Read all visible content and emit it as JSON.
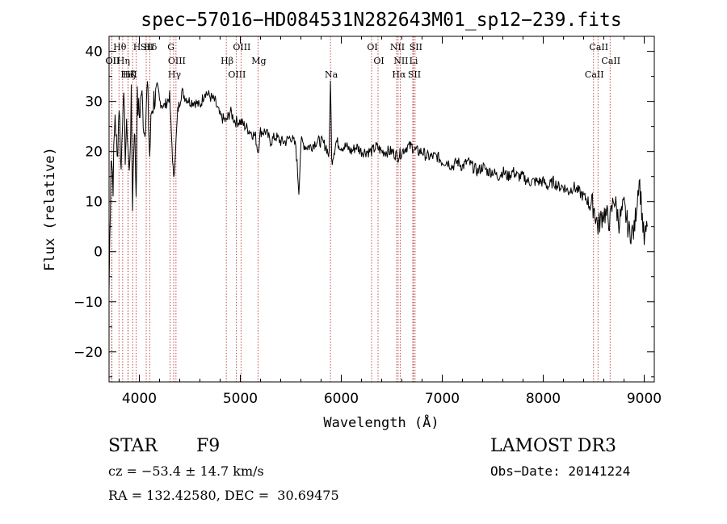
{
  "chart_data": {
    "type": "line",
    "title": "spec−57016−HD084531N282643M01_sp12−239.fits",
    "xlabel": "Wavelength (Å)",
    "ylabel": "Flux (relative)",
    "xlim": [
      3700,
      9100
    ],
    "ylim": [
      -26,
      43
    ],
    "xticks": [
      4000,
      5000,
      6000,
      7000,
      8000,
      9000
    ],
    "yticks": [
      -20,
      -10,
      0,
      10,
      20,
      30,
      40
    ],
    "xtick_labels": [
      "4000",
      "5000",
      "6000",
      "7000",
      "8000",
      "9000"
    ],
    "ytick_labels": [
      "−20",
      "−10",
      "0",
      "10",
      "20",
      "30",
      "40"
    ],
    "grid": false,
    "series": [
      {
        "color": "#000000",
        "x": [
          3700,
          3720,
          3740,
          3760,
          3780,
          3800,
          3820,
          3840,
          3860,
          3880,
          3900,
          3920,
          3933,
          3950,
          3968,
          3980,
          4000,
          4020,
          4050,
          4080,
          4102,
          4120,
          4150,
          4200,
          4250,
          4300,
          4340,
          4380,
          4420,
          4450,
          4500,
          4550,
          4600,
          4650,
          4700,
          4750,
          4800,
          4861,
          4900,
          4950,
          5000,
          5050,
          5100,
          5150,
          5175,
          5200,
          5250,
          5300,
          5350,
          5400,
          5450,
          5500,
          5550,
          5580,
          5600,
          5650,
          5700,
          5750,
          5800,
          5850,
          5880,
          5893,
          5905,
          5950,
          6000,
          6050,
          6100,
          6150,
          6200,
          6250,
          6300,
          6350,
          6400,
          6450,
          6500,
          6563,
          6600,
          6650,
          6700,
          6750,
          6800,
          6850,
          6900,
          6950,
          7000,
          7050,
          7100,
          7150,
          7200,
          7250,
          7300,
          7350,
          7400,
          7450,
          7500,
          7550,
          7600,
          7650,
          7700,
          7750,
          7800,
          7850,
          7900,
          7950,
          8000,
          8050,
          8100,
          8150,
          8200,
          8250,
          8300,
          8350,
          8400,
          8450,
          8500,
          8542,
          8600,
          8662,
          8700,
          8750,
          8800,
          8850,
          8900,
          8950,
          9000,
          9030
        ],
        "y": [
          -8,
          20,
          14,
          28,
          18,
          30,
          16,
          33,
          20,
          25,
          15,
          30,
          10,
          26,
          12,
          30,
          27,
          32,
          24,
          33,
          19,
          28,
          31,
          30,
          29,
          31,
          14,
          28,
          32,
          31,
          30,
          30,
          29,
          32,
          31,
          30,
          27,
          26,
          28,
          26,
          26,
          25,
          24,
          23,
          20,
          24,
          24,
          22,
          23,
          22,
          22,
          23,
          21,
          12,
          22,
          21,
          21,
          22,
          22,
          21,
          19,
          35,
          18,
          22,
          21,
          21,
          20,
          21,
          20,
          20,
          20,
          21,
          20,
          20,
          20,
          19,
          20,
          21,
          21,
          20,
          20,
          19,
          19,
          19,
          18,
          18,
          17,
          18,
          17,
          18,
          17,
          16,
          17,
          16,
          16,
          15,
          16,
          15,
          16,
          15,
          15,
          14,
          14,
          14,
          14,
          13,
          14,
          13,
          13,
          12,
          13,
          12,
          11,
          10,
          9,
          5,
          8,
          6,
          11,
          6,
          9,
          4,
          4,
          15,
          2,
          5
        ]
      }
    ],
    "lines": [
      {
        "label": "Hθ",
        "x": 3798
      },
      {
        "label": "Hη",
        "x": 3835
      },
      {
        "label": "K",
        "x": 3934
      },
      {
        "label": "Hδ",
        "x": 4102
      },
      {
        "label": "OII",
        "x": 3727
      },
      {
        "label": "HeI",
        "x": 3889
      },
      {
        "label": "SII",
        "x": 4068
      },
      {
        "label": "OII",
        "x": 3729
      },
      {
        "label": "Hζ",
        "x": 3889
      },
      {
        "label": "H",
        "x": 3968
      },
      {
        "label": "OIII",
        "x": 4363
      },
      {
        "label": "Hγ",
        "x": 4340
      },
      {
        "label": "G",
        "x": 4305
      },
      {
        "label": "Hβ",
        "x": 4861
      },
      {
        "label": "OIII",
        "x": 4959
      },
      {
        "label": "OIII",
        "x": 5007
      },
      {
        "label": "Mg",
        "x": 5175
      },
      {
        "label": "Na",
        "x": 5893
      },
      {
        "label": "OI",
        "x": 6300
      },
      {
        "label": "OI",
        "x": 6364
      },
      {
        "label": "Hα",
        "x": 6563
      },
      {
        "label": "NII",
        "x": 6548
      },
      {
        "label": "NII",
        "x": 6583
      },
      {
        "label": "SII",
        "x": 6716
      },
      {
        "label": "SII",
        "x": 6731
      },
      {
        "label": "Li",
        "x": 6708
      },
      {
        "label": "CaII",
        "x": 8498
      },
      {
        "label": "CaII",
        "x": 8542
      },
      {
        "label": "CaII",
        "x": 8662
      }
    ]
  },
  "info": {
    "class_label": "STAR",
    "subclass": "F9",
    "survey": "LAMOST DR3",
    "cz_text": "cz = −53.4 ± 14.7 km/s",
    "obs_date": "Obs−Date: 20141224",
    "radec_text": "RA = 132.42580, DEC =  30.69475"
  }
}
